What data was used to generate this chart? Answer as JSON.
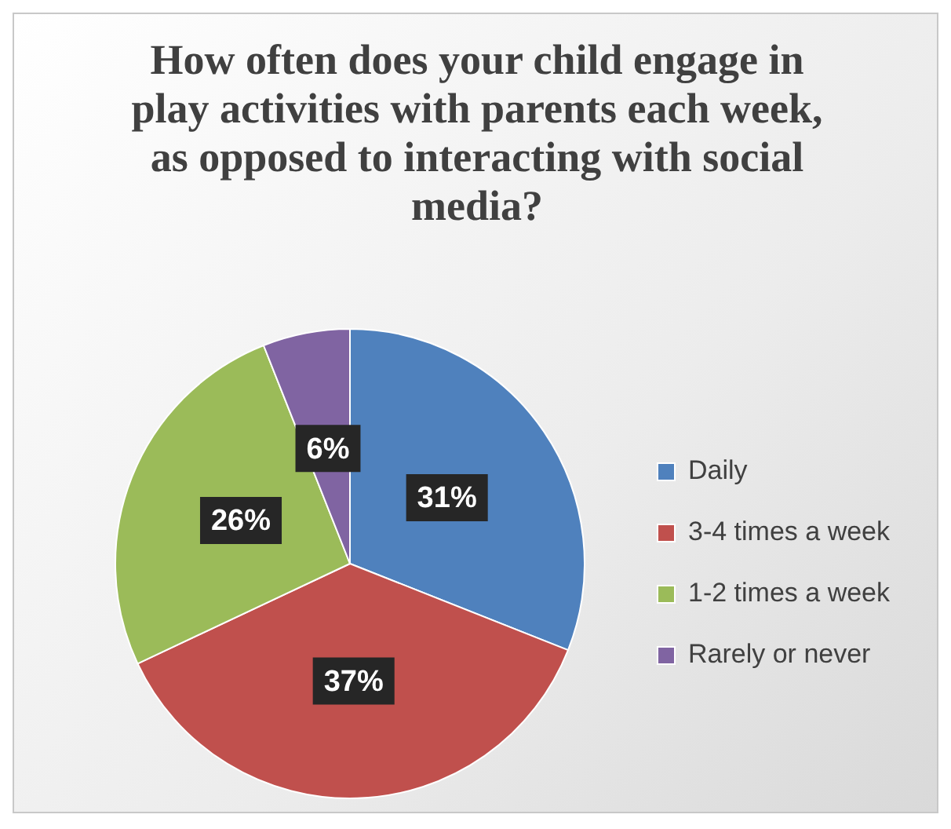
{
  "chart_data": {
    "type": "pie",
    "title": "How often does your child engage in play activities with parents each week, as opposed to interacting with social media?",
    "categories": [
      "Daily",
      "3-4 times a week",
      "1-2 times a week",
      "Rarely or never"
    ],
    "values": [
      31,
      37,
      26,
      6
    ],
    "colors": [
      "#4f81bd",
      "#c0504d",
      "#9bbb59",
      "#8064a2"
    ],
    "value_labels": [
      "31%",
      "37%",
      "26%",
      "6%"
    ],
    "legend": "right"
  }
}
